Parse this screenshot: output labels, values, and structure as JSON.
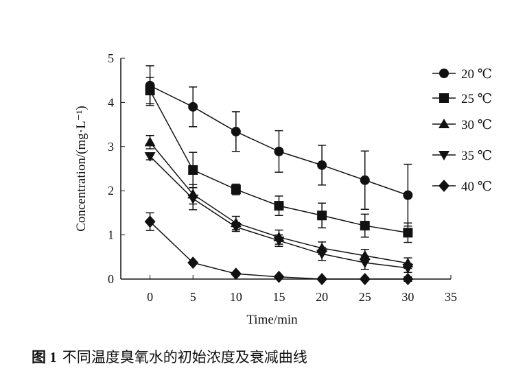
{
  "chart_data": {
    "type": "line",
    "xlabel": "Time/min",
    "ylabel": "Concentration/(mg·L⁻¹)",
    "xlim": [
      -3.4,
      35
    ],
    "ylim": [
      0,
      5
    ],
    "xticks": [
      0,
      5,
      10,
      15,
      20,
      25,
      30,
      35
    ],
    "yticks": [
      0,
      1,
      2,
      3,
      4,
      5
    ],
    "legend_position": "right",
    "x": [
      0,
      5,
      10,
      15,
      20,
      25,
      30
    ],
    "series": [
      {
        "name": "20 ℃",
        "marker": "circle",
        "values": [
          4.38,
          3.9,
          3.34,
          2.89,
          2.58,
          2.24,
          1.9
        ],
        "errors": [
          0.45,
          0.45,
          0.45,
          0.47,
          0.45,
          0.66,
          0.7
        ]
      },
      {
        "name": "25 ℃",
        "marker": "square",
        "values": [
          4.27,
          2.47,
          2.03,
          1.66,
          1.44,
          1.21,
          1.05
        ],
        "errors": [
          0.3,
          0.4,
          0.12,
          0.22,
          0.28,
          0.26,
          0.22
        ]
      },
      {
        "name": "30 ℃",
        "marker": "triangle-up",
        "values": [
          3.1,
          1.92,
          1.27,
          0.95,
          0.7,
          0.53,
          0.36
        ],
        "errors": [
          0.15,
          0.22,
          0.15,
          0.16,
          0.14,
          0.14,
          0.12
        ]
      },
      {
        "name": "35 ℃",
        "marker": "triangle-down",
        "values": [
          2.78,
          1.82,
          1.18,
          0.87,
          0.57,
          0.37,
          0.25
        ],
        "errors": [
          0.08,
          0.25,
          0.1,
          0.13,
          0.15,
          0.15,
          0.1
        ]
      },
      {
        "name": "40 ℃",
        "marker": "diamond",
        "values": [
          1.3,
          0.37,
          0.12,
          0.05,
          0.0,
          0.0,
          0.0
        ],
        "errors": [
          0.2,
          0.03,
          0.03,
          0.02,
          0.02,
          0.02,
          0.05
        ]
      }
    ]
  },
  "caption": {
    "label": "图 1",
    "text": "不同温度臭氧水的初始浓度及衰减曲线"
  }
}
